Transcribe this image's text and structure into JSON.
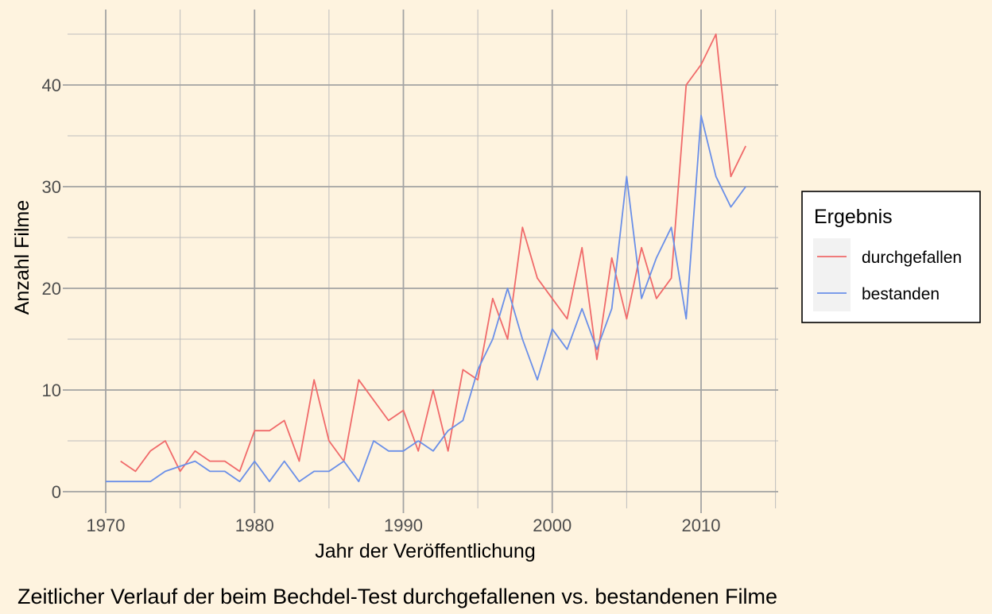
{
  "chart_data": {
    "type": "line",
    "caption": "Zeitlicher Verlauf der beim Bechdel-Test durchgefallenen vs. bestandenen Filme",
    "xlabel": "Jahr der Veröffentlichung",
    "ylabel": "Anzahl Filme",
    "xlim": [
      1970,
      2015
    ],
    "ylim": [
      0,
      45
    ],
    "x_ticks": [
      1970,
      1980,
      1990,
      2000,
      2010
    ],
    "x_tick_labels": [
      "1970",
      "1980",
      "1990",
      "2000",
      "2010"
    ],
    "y_ticks": [
      0,
      10,
      20,
      30,
      40
    ],
    "y_tick_labels": [
      "0",
      "10",
      "20",
      "30",
      "40"
    ],
    "grid": true,
    "legend": {
      "title": "Ergebnis",
      "placement": "right"
    },
    "series": [
      {
        "name": "durchgefallen",
        "color": "#F06A6A",
        "x": [
          1971,
          1972,
          1973,
          1974,
          1975,
          1976,
          1977,
          1978,
          1979,
          1980,
          1981,
          1982,
          1983,
          1984,
          1985,
          1986,
          1987,
          1988,
          1989,
          1990,
          1991,
          1992,
          1993,
          1994,
          1995,
          1996,
          1997,
          1998,
          1999,
          2000,
          2001,
          2002,
          2003,
          2004,
          2005,
          2006,
          2007,
          2008,
          2009,
          2010,
          2011,
          2012,
          2013
        ],
        "values": [
          3,
          2,
          4,
          5,
          2,
          4,
          3,
          3,
          2,
          6,
          6,
          7,
          3,
          11,
          5,
          3,
          11,
          9,
          7,
          8,
          4,
          10,
          4,
          12,
          11,
          19,
          15,
          26,
          21,
          19,
          17,
          24,
          13,
          23,
          17,
          24,
          19,
          21,
          40,
          42,
          45,
          31,
          34
        ]
      },
      {
        "name": "bestanden",
        "color": "#6A8FE8",
        "x": [
          1970,
          1971,
          1972,
          1973,
          1974,
          1975,
          1976,
          1977,
          1978,
          1979,
          1980,
          1981,
          1982,
          1983,
          1984,
          1985,
          1986,
          1987,
          1988,
          1989,
          1990,
          1991,
          1992,
          1993,
          1994,
          1995,
          1996,
          1997,
          1998,
          1999,
          2000,
          2001,
          2002,
          2003,
          2004,
          2005,
          2006,
          2007,
          2008,
          2009,
          2010,
          2011,
          2012,
          2013
        ],
        "values": [
          1,
          1,
          1,
          1,
          2,
          2.5,
          3,
          2,
          2,
          1,
          3,
          1,
          3,
          1,
          2,
          2,
          3,
          1,
          5,
          4,
          4,
          5,
          4,
          6,
          7,
          12,
          15,
          20,
          15,
          11,
          16,
          14,
          18,
          14,
          18,
          31,
          19,
          23,
          26,
          17,
          37,
          31,
          28,
          30
        ]
      }
    ]
  },
  "colors": {
    "background": "#FEF3DF",
    "grid_major": "#A3A3A3",
    "grid_minor": "#BDBDBD",
    "axis_text": "#4D4D4D",
    "text": "#000000",
    "legend_key_bg": "#F2F2F2"
  }
}
